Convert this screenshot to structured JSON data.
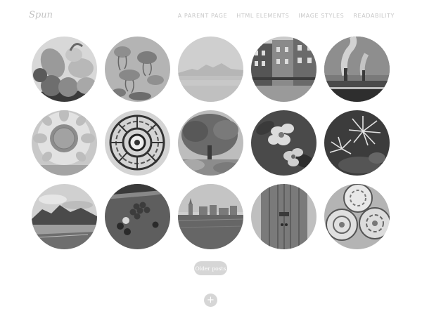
{
  "header": {
    "logo": "Spun",
    "nav": [
      {
        "label": "A PARENT PAGE"
      },
      {
        "label": "HTML ELEMENTS"
      },
      {
        "label": "IMAGE STYLES"
      },
      {
        "label": "READABILITY"
      }
    ]
  },
  "posts": [
    {
      "icon": "fruit-bowl-photo"
    },
    {
      "icon": "jellyfish-photo"
    },
    {
      "icon": "hazy-landscape-photo"
    },
    {
      "icon": "city-street-photo"
    },
    {
      "icon": "industrial-smoke-photo"
    },
    {
      "icon": "sunflower-pattern-photo"
    },
    {
      "icon": "mandala-pattern-photo"
    },
    {
      "icon": "tree-photo"
    },
    {
      "icon": "flowers-photo"
    },
    {
      "icon": "spiky-flowers-photo"
    },
    {
      "icon": "mountain-coast-photo"
    },
    {
      "icon": "billiard-table-photo"
    },
    {
      "icon": "harbor-skyline-photo"
    },
    {
      "icon": "wooden-door-photo"
    },
    {
      "icon": "ceramic-plates-photo"
    }
  ],
  "pagination": {
    "older_label": "Older posts",
    "more_symbol": "+"
  }
}
